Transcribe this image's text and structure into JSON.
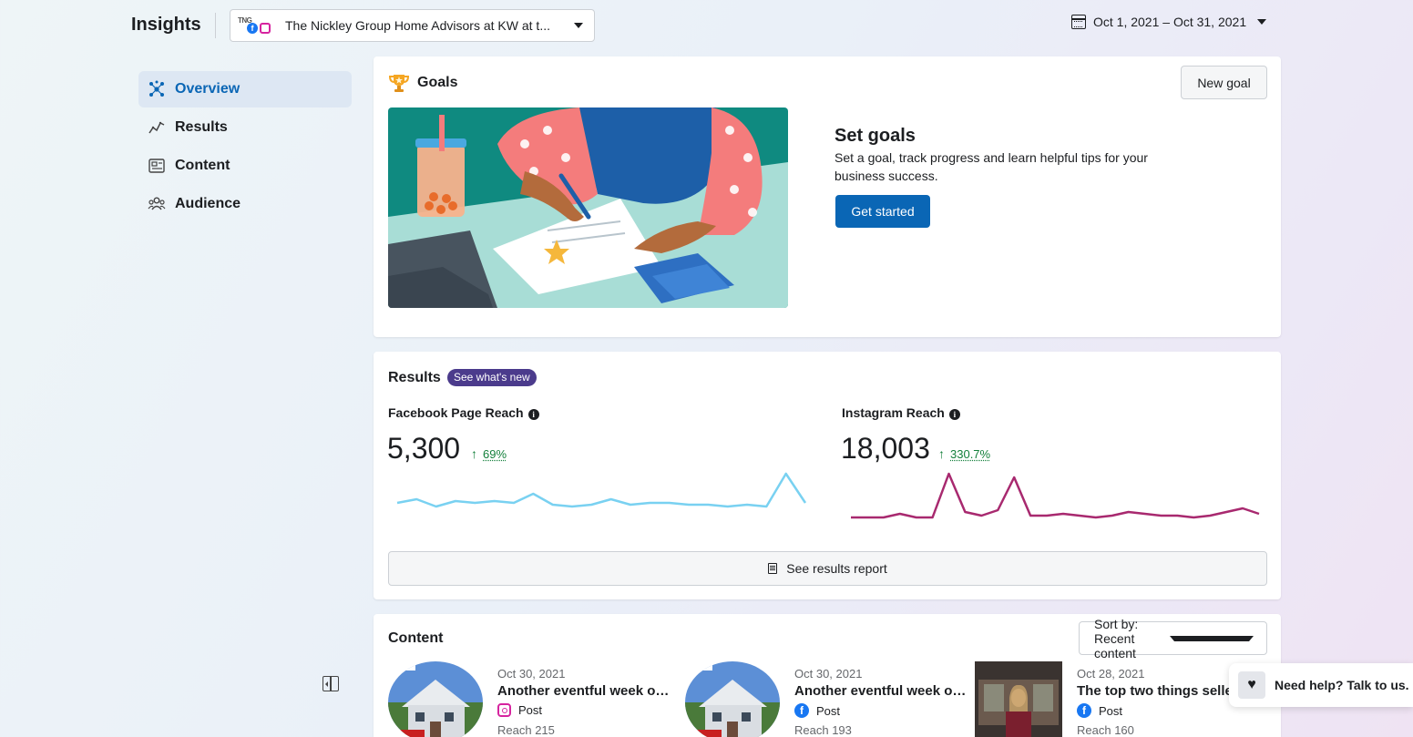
{
  "header": {
    "title": "Insights",
    "account_logo_text": "TNG",
    "account_name": "The Nickley Group Home Advisors at KW at t...",
    "date_range": "Oct 1, 2021 – Oct 31, 2021"
  },
  "sidebar": {
    "items": [
      {
        "label": "Overview",
        "active": true,
        "icon": "overview-icon"
      },
      {
        "label": "Results",
        "active": false,
        "icon": "results-icon"
      },
      {
        "label": "Content",
        "active": false,
        "icon": "content-icon"
      },
      {
        "label": "Audience",
        "active": false,
        "icon": "audience-icon"
      }
    ]
  },
  "goals": {
    "title": "Goals",
    "new_goal_label": "New goal",
    "heading": "Set goals",
    "description": "Set a goal, track progress and learn helpful tips for your business success.",
    "cta_label": "Get started"
  },
  "results": {
    "title": "Results",
    "badge": "See what's new",
    "facebook": {
      "label": "Facebook Page Reach",
      "value": "5,300",
      "change": "69%",
      "color": "#79d1f1",
      "trend": [
        12,
        14,
        10,
        13,
        12,
        13,
        12,
        17,
        11,
        10,
        11,
        14,
        11,
        12,
        12,
        11,
        11,
        10,
        11,
        10,
        28,
        12
      ]
    },
    "instagram": {
      "label": "Instagram Reach",
      "value": "18,003",
      "change": "330.7%",
      "color": "#a8296f",
      "trend": [
        4,
        4,
        4,
        6,
        4,
        4,
        28,
        7,
        5,
        8,
        26,
        5,
        5,
        6,
        5,
        4,
        5,
        7,
        6,
        5,
        5,
        4,
        5,
        7,
        9,
        6
      ]
    },
    "report_label": "See results report"
  },
  "content": {
    "title": "Content",
    "sort_label": "Sort by: Recent content",
    "posts": [
      {
        "date": "Oct 30, 2021",
        "title": "Another eventful week of ...",
        "type": "Post",
        "platform": "instagram",
        "reach": "Reach       215"
      },
      {
        "date": "Oct 30, 2021",
        "title": "Another eventful week of ...",
        "type": "Post",
        "platform": "facebook",
        "reach": "Reach       193"
      },
      {
        "date": "Oct 28, 2021",
        "title": "The top two things sellers",
        "type": "Post",
        "platform": "facebook",
        "reach": "Reach       160"
      }
    ]
  },
  "help": {
    "label": "Need help? Talk to us."
  }
}
